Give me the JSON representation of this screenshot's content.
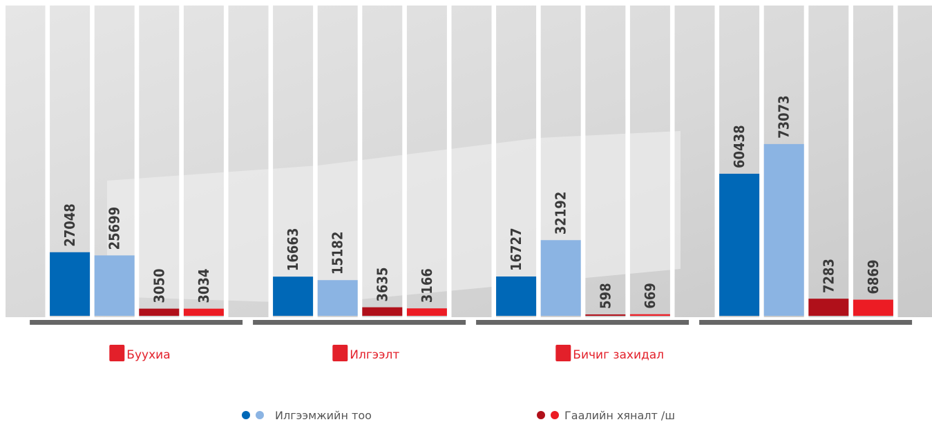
{
  "chart_data": {
    "type": "bar",
    "categories": [
      "Буухиа",
      "Илгээлт",
      "Бичиг захидал",
      null
    ],
    "series": [
      {
        "color": "#0068b7",
        "values": [
          27048,
          16663,
          16727,
          60438
        ]
      },
      {
        "color": "#8bb4e3",
        "values": [
          25699,
          15182,
          32192,
          73073
        ]
      },
      {
        "color": "#b0101a",
        "values": [
          3050,
          3635,
          598,
          7283
        ]
      },
      {
        "color": "#ec1c24",
        "values": [
          3034,
          3166,
          669,
          6869
        ]
      }
    ],
    "legend": [
      {
        "label": "Илгээмжийн тоо",
        "colors": [
          "#0068b7",
          "#8bb4e3"
        ]
      },
      {
        "label": "Гаалийн хяналт /ш",
        "colors": [
          "#b0101a",
          "#ec1c24"
        ]
      }
    ],
    "ylim": [
      0,
      132000
    ]
  }
}
